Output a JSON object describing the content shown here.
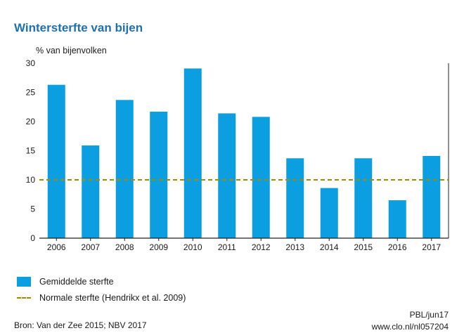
{
  "title": "Wintersterfte van bijen",
  "chart_data": {
    "type": "bar",
    "title": "Wintersterfte van bijen",
    "ylabel": "% van bijenvolken",
    "xlabel": "",
    "categories": [
      "2006",
      "2007",
      "2008",
      "2009",
      "2010",
      "2011",
      "2012",
      "2013",
      "2014",
      "2015",
      "2016",
      "2017"
    ],
    "series": [
      {
        "name": "Gemiddelde sterfte",
        "values": [
          26.3,
          15.9,
          23.7,
          21.7,
          29.1,
          21.4,
          20.8,
          13.7,
          8.6,
          13.7,
          6.5,
          14.1
        ]
      }
    ],
    "reference_line": {
      "name": "Normale sterfte (Hendrikx et al. 2009)",
      "value": 10
    },
    "ylim": [
      0,
      30
    ],
    "yticks": [
      0,
      5,
      10,
      15,
      20,
      25,
      30
    ],
    "grid": false,
    "legend_position": "bottom-left",
    "colors": {
      "bar": "#0b9ee0",
      "reference": "#9a8e00",
      "title": "#1f6fb5"
    }
  },
  "legend": {
    "bars_label": "Gemiddelde sterfte",
    "line_label": "Normale sterfte (Hendrikx et al. 2009)"
  },
  "footer": {
    "source": "Bron: Van der Zee 2015; NBV 2017",
    "code": "PBL/jun17",
    "url": "www.clo.nl/nl057204"
  }
}
